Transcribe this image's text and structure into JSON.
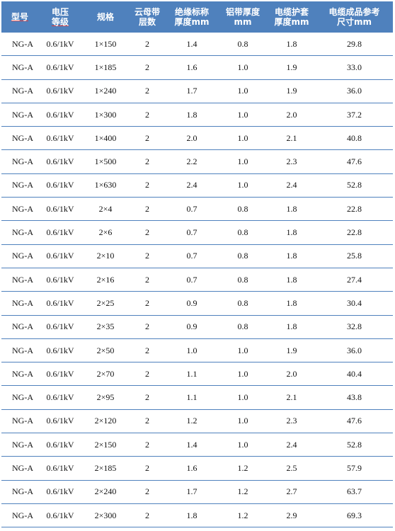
{
  "headers": [
    {
      "lines": [
        "型号"
      ]
    },
    {
      "lines": [
        "电压",
        "等级"
      ]
    },
    {
      "lines": [
        "规格"
      ]
    },
    {
      "lines": [
        "云母带",
        "层数"
      ]
    },
    {
      "lines": [
        "绝缘标称",
        "厚度mm"
      ]
    },
    {
      "lines": [
        "铝带厚度",
        "mm"
      ]
    },
    {
      "lines": [
        "电缆护套",
        "厚度mm"
      ]
    },
    {
      "lines": [
        "电缆成品参考",
        "尺寸mm"
      ]
    }
  ],
  "rows": [
    [
      "NG-A",
      "0.6/1kV",
      "1×150",
      "2",
      "1.4",
      "0.8",
      "1.8",
      "29.8"
    ],
    [
      "NG-A",
      "0.6/1kV",
      "1×185",
      "2",
      "1.6",
      "1.0",
      "1.9",
      "33.0"
    ],
    [
      "NG-A",
      "0.6/1kV",
      "1×240",
      "2",
      "1.7",
      "1.0",
      "1.9",
      "36.0"
    ],
    [
      "NG-A",
      "0.6/1kV",
      "1×300",
      "2",
      "1.8",
      "1.0",
      "2.0",
      "37.2"
    ],
    [
      "NG-A",
      "0.6/1kV",
      "1×400",
      "2",
      "2.0",
      "1.0",
      "2.1",
      "40.8"
    ],
    [
      "NG-A",
      "0.6/1kV",
      "1×500",
      "2",
      "2.2",
      "1.0",
      "2.3",
      "47.6"
    ],
    [
      "NG-A",
      "0.6/1kV",
      "1×630",
      "2",
      "2.4",
      "1.0",
      "2.4",
      "52.8"
    ],
    [
      "NG-A",
      "0.6/1kV",
      "2×4",
      "2",
      "0.7",
      "0.8",
      "1.8",
      "22.8"
    ],
    [
      "NG-A",
      "0.6/1kV",
      "2×6",
      "2",
      "0.7",
      "0.8",
      "1.8",
      "22.8"
    ],
    [
      "NG-A",
      "0.6/1kV",
      "2×10",
      "2",
      "0.7",
      "0.8",
      "1.8",
      "25.8"
    ],
    [
      "NG-A",
      "0.6/1kV",
      "2×16",
      "2",
      "0.7",
      "0.8",
      "1.8",
      "27.4"
    ],
    [
      "NG-A",
      "0.6/1kV",
      "2×25",
      "2",
      "0.9",
      "0.8",
      "1.8",
      "30.4"
    ],
    [
      "NG-A",
      "0.6/1kV",
      "2×35",
      "2",
      "0.9",
      "0.8",
      "1.8",
      "32.8"
    ],
    [
      "NG-A",
      "0.6/1kV",
      "2×50",
      "2",
      "1.0",
      "1.0",
      "1.9",
      "36.0"
    ],
    [
      "NG-A",
      "0.6/1kV",
      "2×70",
      "2",
      "1.1",
      "1.0",
      "2.0",
      "40.4"
    ],
    [
      "NG-A",
      "0.6/1kV",
      "2×95",
      "2",
      "1.1",
      "1.0",
      "2.1",
      "43.8"
    ],
    [
      "NG-A",
      "0.6/1kV",
      "2×120",
      "2",
      "1.2",
      "1.0",
      "2.3",
      "47.6"
    ],
    [
      "NG-A",
      "0.6/1kV",
      "2×150",
      "2",
      "1.4",
      "1.0",
      "2.4",
      "52.8"
    ],
    [
      "NG-A",
      "0.6/1kV",
      "2×185",
      "2",
      "1.6",
      "1.2",
      "2.5",
      "57.9"
    ],
    [
      "NG-A",
      "0.6/1kV",
      "2×240",
      "2",
      "1.7",
      "1.2",
      "2.7",
      "63.7"
    ],
    [
      "NG-A",
      "0.6/1kV",
      "2×300",
      "2",
      "1.8",
      "1.2",
      "2.9",
      "69.3"
    ]
  ],
  "colors": {
    "header_bg": "#4f81bd",
    "header_text": "#ffffff",
    "row_rule": "#4f81bd"
  }
}
